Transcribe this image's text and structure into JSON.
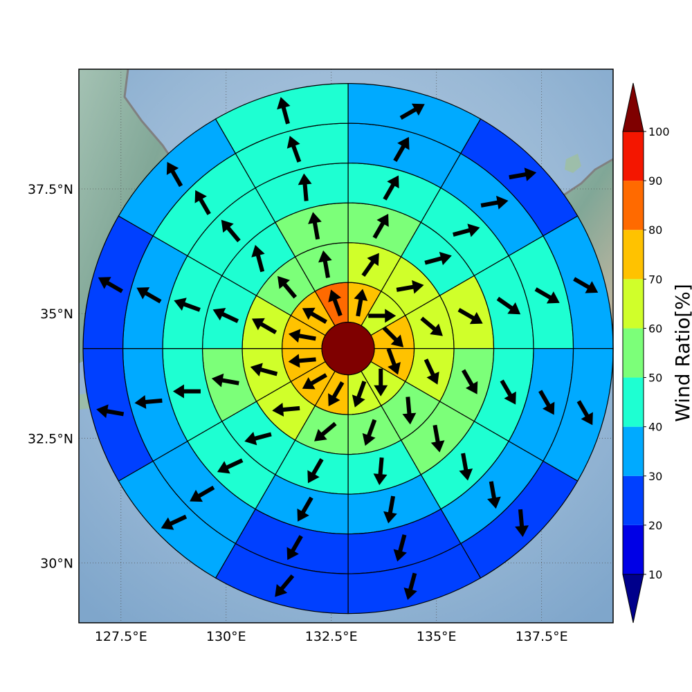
{
  "map": {
    "lon_range": [
      126.5,
      139.2
    ],
    "lat_range": [
      28.8,
      39.9
    ],
    "lon_ticks": [
      {
        "value": 127.5,
        "label": "127.5°E"
      },
      {
        "value": 130.0,
        "label": "130°E"
      },
      {
        "value": 132.5,
        "label": "132.5°E"
      },
      {
        "value": 135.0,
        "label": "135°E"
      },
      {
        "value": 137.5,
        "label": "137.5°E"
      }
    ],
    "lat_ticks": [
      {
        "value": 37.5,
        "label": "37.5°N"
      },
      {
        "value": 35.0,
        "label": "35°N"
      },
      {
        "value": 32.5,
        "label": "32.5°N"
      },
      {
        "value": 30.0,
        "label": "30°N"
      }
    ],
    "gridlines": true,
    "ocean_color": "#9dbbd8",
    "land_color": "#8fb3a0",
    "coastline_color": "#808080"
  },
  "wind_rose": {
    "center": {
      "lon": 132.9,
      "lat": 34.3
    },
    "center_value": 100,
    "sectors": 12,
    "sector_start_bearings_deg": [
      0,
      30,
      60,
      90,
      120,
      150,
      180,
      210,
      240,
      270,
      300,
      330
    ],
    "rings": [
      {
        "name": "ring-1",
        "values": [
          75,
          65,
          75,
          75,
          65,
          65,
          75,
          75,
          75,
          75,
          75,
          85
        ],
        "arrow_dir_deg": [
          10,
          90,
          135,
          160,
          180,
          200,
          210,
          240,
          265,
          280,
          300,
          340
        ]
      },
      {
        "name": "ring-2",
        "values": [
          65,
          60,
          65,
          65,
          55,
          55,
          55,
          65,
          65,
          65,
          55,
          55
        ],
        "arrow_dir_deg": [
          35,
          80,
          130,
          155,
          175,
          200,
          230,
          265,
          285,
          300,
          320,
          350
        ]
      },
      {
        "name": "ring-3",
        "values": [
          55,
          45,
          60,
          55,
          55,
          45,
          45,
          45,
          55,
          45,
          45,
          55
        ],
        "arrow_dir_deg": [
          30,
          75,
          120,
          150,
          170,
          185,
          210,
          255,
          280,
          295,
          345,
          350
        ]
      },
      {
        "name": "ring-4",
        "values": [
          45,
          45,
          45,
          45,
          45,
          35,
          35,
          45,
          45,
          45,
          45,
          45
        ],
        "arrow_dir_deg": [
          30,
          75,
          125,
          150,
          170,
          190,
          210,
          245,
          270,
          290,
          320,
          355
        ]
      },
      {
        "name": "ring-5",
        "values": [
          35,
          35,
          45,
          35,
          35,
          25,
          25,
          35,
          35,
          35,
          45,
          45
        ],
        "arrow_dir_deg": [
          30,
          80,
          120,
          150,
          170,
          195,
          210,
          240,
          265,
          300,
          330,
          340
        ]
      },
      {
        "name": "ring-6",
        "values": [
          35,
          25,
          35,
          35,
          25,
          25,
          25,
          35,
          25,
          25,
          35,
          45
        ],
        "arrow_dir_deg": [
          60,
          80,
          120,
          150,
          175,
          195,
          220,
          245,
          280,
          300,
          330,
          345
        ]
      }
    ]
  },
  "colorbar": {
    "label": "Wind Ratio[%]",
    "levels": [
      0,
      10,
      20,
      30,
      40,
      50,
      60,
      70,
      80,
      90,
      100,
      110
    ],
    "tick_values": [
      10,
      20,
      30,
      40,
      50,
      60,
      70,
      80,
      90,
      100
    ],
    "tick_labels": [
      "10",
      "20",
      "30",
      "40",
      "50",
      "60",
      "70",
      "80",
      "90",
      "100"
    ],
    "colors": [
      "#00008b",
      "#0000e6",
      "#0040ff",
      "#00aaff",
      "#1effd2",
      "#7cff79",
      "#d0ff2a",
      "#ffc200",
      "#ff6a00",
      "#f41600",
      "#7f0000"
    ],
    "extend": "both"
  }
}
